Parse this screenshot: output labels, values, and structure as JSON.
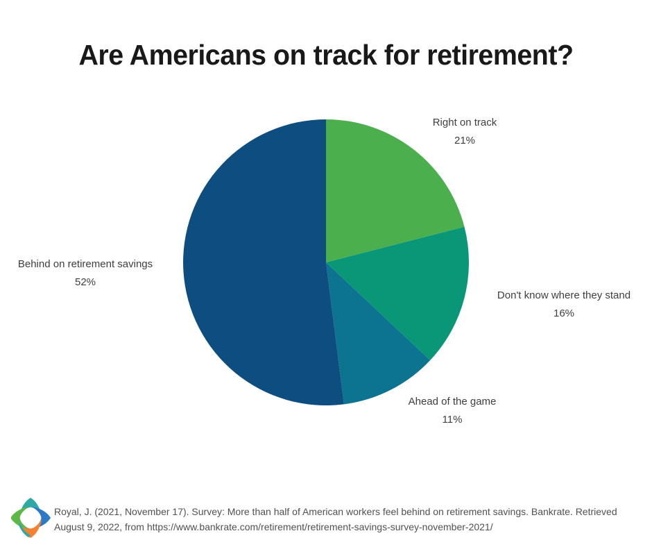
{
  "header": {
    "title": "Are Americans on track for retirement?"
  },
  "chart_data": {
    "type": "pie",
    "title": "Are Americans on track for retirement?",
    "categories": [
      "Right on track",
      "Don't know where they stand",
      "Ahead of the game",
      "Behind on retirement savings"
    ],
    "values": [
      21,
      16,
      11,
      52
    ],
    "unit": "%",
    "start_angle_deg": 0,
    "direction": "clockwise",
    "legend_position": "labels-around-pie",
    "slices": [
      {
        "label": "Right on track",
        "value": 21,
        "pct_label": "21%",
        "color": "#4caf4e"
      },
      {
        "label": "Don't know where they stand",
        "value": 16,
        "pct_label": "16%",
        "color": "#0a9778"
      },
      {
        "label": "Ahead of the game",
        "value": 11,
        "pct_label": "11%",
        "color": "#0c7390"
      },
      {
        "label": "Behind on retirement savings",
        "value": 52,
        "pct_label": "52%",
        "color": "#0e4d7f"
      }
    ]
  },
  "footer": {
    "citation_line1": "Royal, J. (2021, November 17). Survey: More than half of American workers feel behind on retirement savings. Bankrate. Retrieved",
    "citation_line2": "August 9, 2022, from https://www.bankrate.com/retirement/retirement-savings-survey-november-2021/",
    "logo": {
      "name": "four-point-star-logo",
      "colors": {
        "top": "#2ea9a6",
        "right": "#2e79c6",
        "bottom": "#f58233",
        "left": "#5cb847",
        "accent": "#2ea9a6"
      }
    }
  },
  "style": {
    "background": "#ffffff",
    "title_color": "#191919",
    "label_color": "#3e3e3e",
    "citation_color": "#4f5052"
  }
}
